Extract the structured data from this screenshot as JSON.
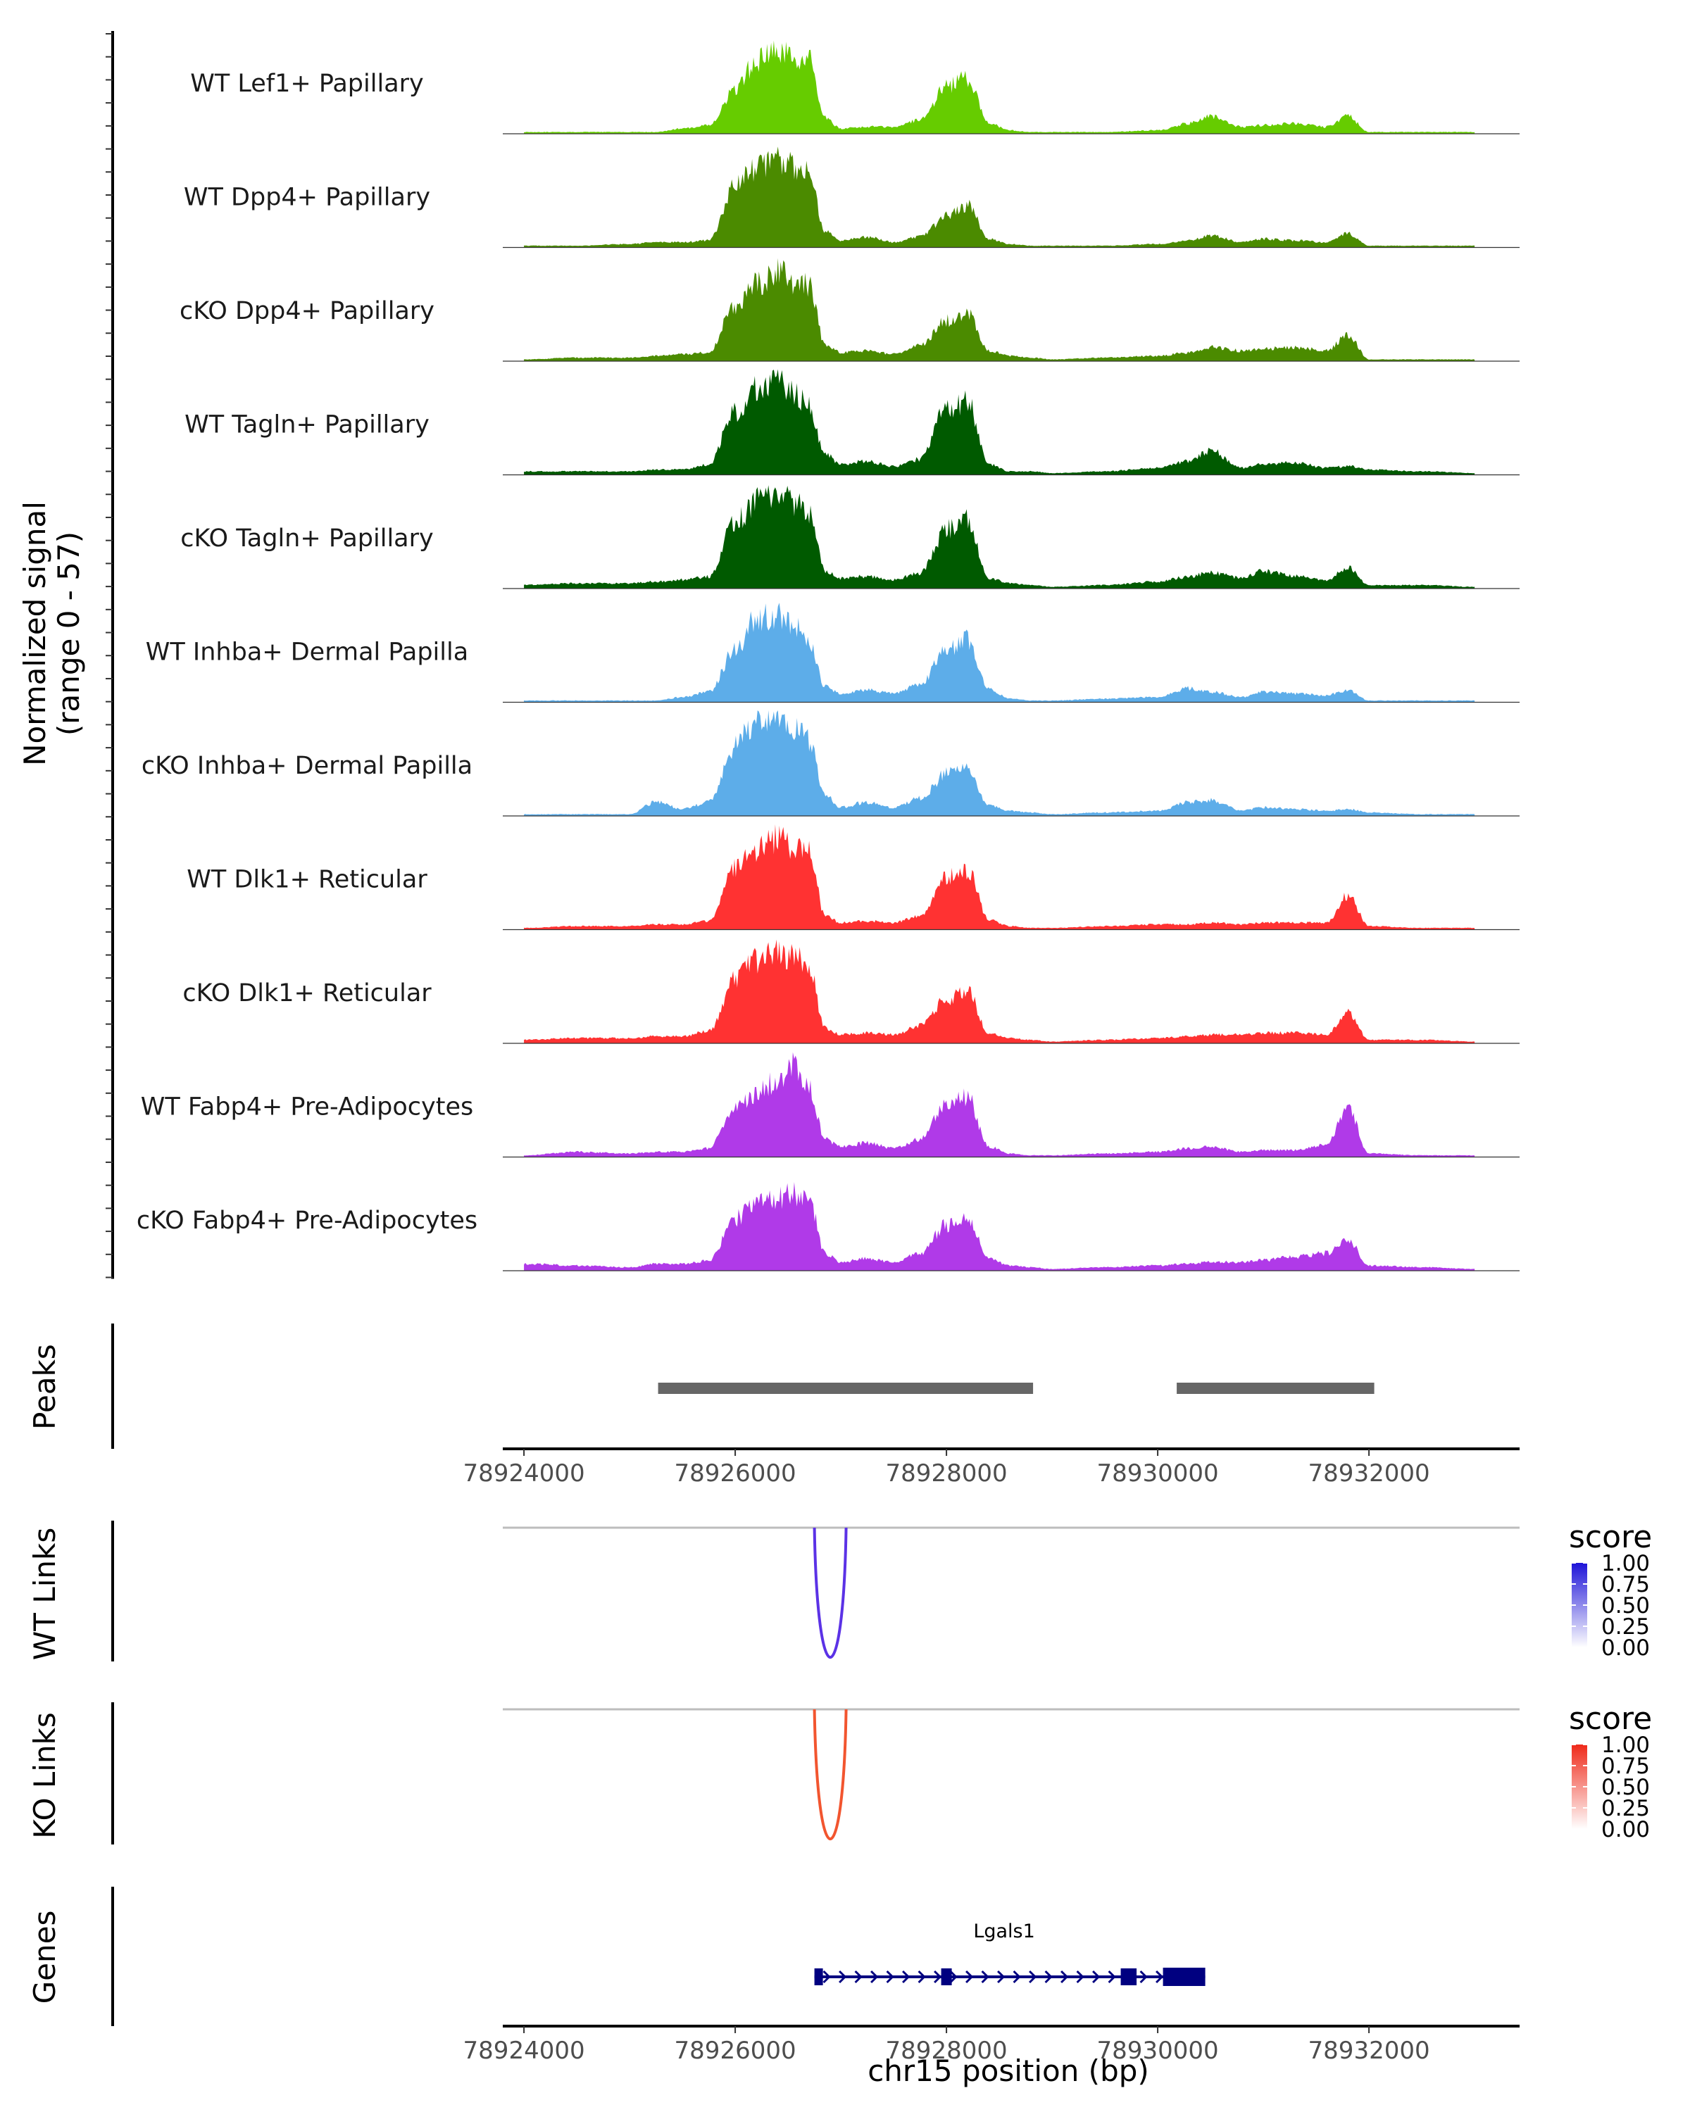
{
  "chart_data": {
    "type": "area",
    "title": "",
    "region": "chr15",
    "xlabel": "chr15 position (bp)",
    "xlim": [
      78923800,
      78933400
    ],
    "x_ticks": [
      78924000,
      78926000,
      78928000,
      78930000,
      78932000
    ],
    "x_tick_labels": [
      "78924000",
      "78926000",
      "78928000",
      "78930000",
      "78932000"
    ],
    "coverage_ylabel_line1": "Normalized signal",
    "coverage_ylabel_line2": "(range 0 - 57)",
    "ylim": [
      0,
      57
    ],
    "bin_positions": [
      78924000,
      78924500,
      78925000,
      78925250,
      78925500,
      78925750,
      78926000,
      78926200,
      78926400,
      78926550,
      78926700,
      78926850,
      78927000,
      78927250,
      78927500,
      78927750,
      78928000,
      78928200,
      78928400,
      78928600,
      78928800,
      78929000,
      78929500,
      78930000,
      78930300,
      78930500,
      78930800,
      78931000,
      78931300,
      78931600,
      78931800,
      78932000,
      78932500,
      78933000
    ],
    "series": [
      {
        "name": "WT Lef1+ Papillary",
        "color": "#66cc00",
        "values": [
          1,
          1,
          1,
          1,
          3,
          5,
          25,
          42,
          47,
          44,
          42,
          9,
          3,
          4,
          4,
          8,
          27,
          32,
          6,
          2,
          1,
          1,
          1,
          2,
          6,
          10,
          4,
          5,
          6,
          4,
          10,
          1,
          1,
          1
        ]
      },
      {
        "name": "WT Dpp4+ Papillary",
        "color": "#4b8b00",
        "values": [
          1,
          1,
          2,
          3,
          3,
          4,
          35,
          46,
          50,
          47,
          45,
          9,
          4,
          6,
          3,
          6,
          18,
          24,
          5,
          2,
          1,
          1,
          1,
          2,
          4,
          7,
          3,
          5,
          4,
          3,
          8,
          1,
          1,
          1
        ]
      },
      {
        "name": "cKO Dpp4+ Papillary",
        "color": "#4b8b00",
        "values": [
          1,
          2,
          2,
          3,
          4,
          5,
          32,
          44,
          52,
          46,
          43,
          10,
          5,
          6,
          4,
          9,
          23,
          28,
          6,
          3,
          2,
          1,
          2,
          3,
          5,
          8,
          6,
          7,
          8,
          6,
          15,
          1,
          1,
          1
        ]
      },
      {
        "name": "WT Tagln+ Papillary",
        "color": "#005a00",
        "values": [
          2,
          2,
          2,
          3,
          3,
          6,
          36,
          50,
          55,
          48,
          40,
          12,
          6,
          8,
          5,
          9,
          38,
          42,
          6,
          2,
          2,
          1,
          2,
          4,
          8,
          14,
          4,
          6,
          7,
          4,
          5,
          3,
          2,
          1
        ]
      },
      {
        "name": "cKO Tagln+ Papillary",
        "color": "#005a00",
        "values": [
          2,
          3,
          3,
          4,
          5,
          7,
          38,
          50,
          54,
          50,
          44,
          10,
          6,
          7,
          5,
          9,
          34,
          40,
          6,
          3,
          2,
          1,
          2,
          4,
          7,
          9,
          6,
          10,
          7,
          5,
          12,
          2,
          2,
          1
        ]
      },
      {
        "name": "WT Inhba+ Dermal Papilla",
        "color": "#5dade9",
        "values": [
          1,
          1,
          1,
          1,
          3,
          6,
          30,
          48,
          50,
          44,
          36,
          9,
          5,
          7,
          5,
          10,
          30,
          36,
          8,
          2,
          1,
          1,
          2,
          3,
          8,
          6,
          3,
          6,
          5,
          4,
          7,
          1,
          1,
          1
        ]
      },
      {
        "name": "cKO Inhba+ Dermal Papilla",
        "color": "#5dade9",
        "values": [
          1,
          1,
          1,
          8,
          4,
          8,
          40,
          55,
          57,
          52,
          44,
          12,
          5,
          8,
          5,
          10,
          24,
          26,
          6,
          3,
          2,
          1,
          2,
          3,
          8,
          9,
          3,
          5,
          4,
          3,
          4,
          2,
          1,
          1
        ]
      },
      {
        "name": "WT Dlk1+ Reticular",
        "color": "#ff3232",
        "values": [
          1,
          2,
          2,
          3,
          3,
          5,
          36,
          46,
          52,
          48,
          44,
          8,
          4,
          5,
          4,
          8,
          30,
          34,
          6,
          2,
          1,
          1,
          2,
          3,
          3,
          4,
          3,
          4,
          4,
          4,
          20,
          2,
          1,
          1
        ]
      },
      {
        "name": "cKO Dlk1+ Reticular",
        "color": "#ff3232",
        "values": [
          2,
          3,
          3,
          4,
          4,
          7,
          36,
          48,
          52,
          49,
          44,
          9,
          5,
          6,
          5,
          10,
          26,
          30,
          6,
          3,
          2,
          1,
          2,
          3,
          4,
          5,
          5,
          6,
          6,
          5,
          18,
          2,
          2,
          1
        ]
      },
      {
        "name": "WT Fabp4+ Pre-Adipocytes",
        "color": "#b03ae8",
        "values": [
          1,
          3,
          2,
          3,
          3,
          5,
          28,
          36,
          44,
          54,
          40,
          10,
          6,
          8,
          5,
          10,
          30,
          34,
          6,
          2,
          1,
          1,
          2,
          3,
          5,
          6,
          3,
          4,
          4,
          7,
          28,
          2,
          1,
          1
        ]
      },
      {
        "name": "cKO Fabp4+ Pre-Adipocytes",
        "color": "#b03ae8",
        "values": [
          4,
          3,
          2,
          4,
          4,
          6,
          30,
          38,
          42,
          44,
          40,
          10,
          5,
          7,
          5,
          10,
          26,
          30,
          7,
          3,
          2,
          1,
          2,
          3,
          4,
          5,
          5,
          6,
          8,
          10,
          18,
          3,
          2,
          1
        ]
      }
    ],
    "peaks_title": "Peaks",
    "peaks": [
      {
        "start": 78925270,
        "end": 78928820
      },
      {
        "start": 78930180,
        "end": 78932050
      }
    ],
    "links": [
      {
        "title": "WT Links",
        "start": 78926750,
        "end": 78927050,
        "score": 1.0,
        "color": "#5b32e6",
        "legend_title": "score",
        "legend_color": "#1e14d8",
        "legend_ticks": [
          "1.00",
          "0.75",
          "0.50",
          "0.25",
          "0.00"
        ]
      },
      {
        "title": "KO Links",
        "start": 78926750,
        "end": 78927050,
        "score": 1.0,
        "color": "#f2552f",
        "legend_title": "score",
        "legend_color": "#ef2a1a",
        "legend_ticks": [
          "1.00",
          "0.75",
          "0.50",
          "0.25",
          "0.00"
        ]
      }
    ],
    "genes_title": "Genes",
    "gene": {
      "name": "Lgals1",
      "color": "#000080",
      "strand": "+",
      "start": 78926750,
      "end": 78930450,
      "exons": [
        [
          78926750,
          78926830
        ],
        [
          78927950,
          78928050
        ],
        [
          78929650,
          78929800
        ],
        [
          78930050,
          78930450
        ]
      ]
    }
  }
}
